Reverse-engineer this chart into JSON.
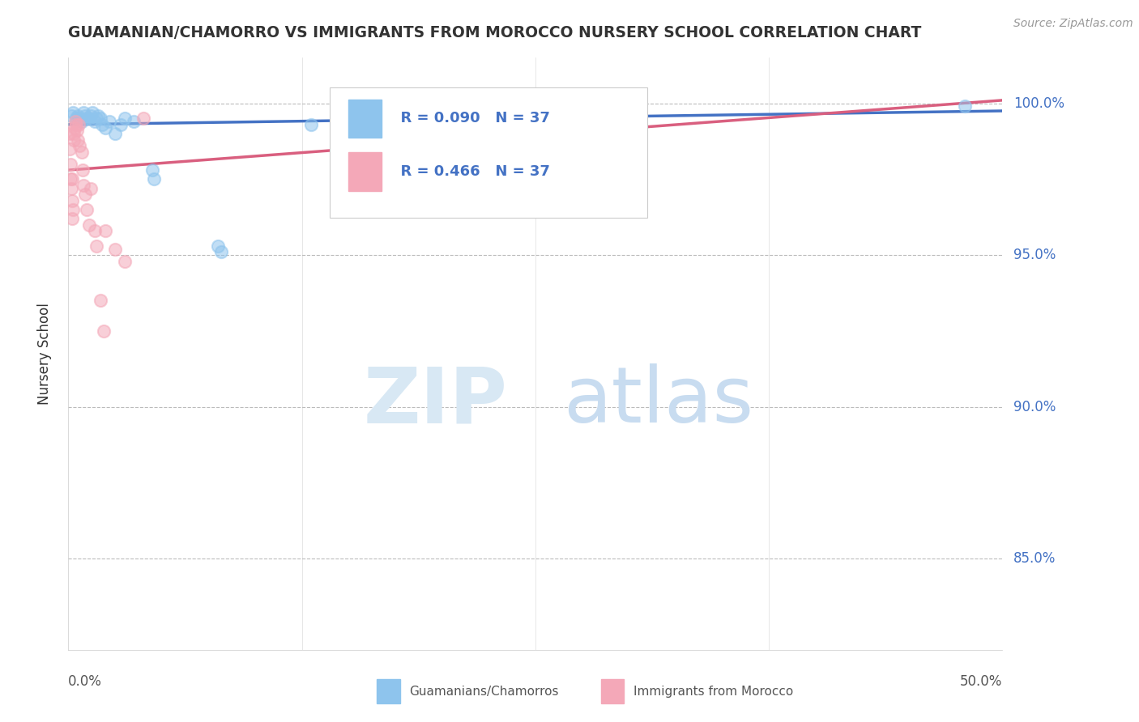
{
  "title": "GUAMANIAN/CHAMORRO VS IMMIGRANTS FROM MOROCCO NURSERY SCHOOL CORRELATION CHART",
  "source": "Source: ZipAtlas.com",
  "ylabel": "Nursery School",
  "ytick_labels": [
    "100.0%",
    "95.0%",
    "90.0%",
    "85.0%"
  ],
  "ytick_values": [
    100.0,
    95.0,
    90.0,
    85.0
  ],
  "xlim": [
    0.0,
    50.0
  ],
  "ylim": [
    82.0,
    101.5
  ],
  "legend_label1": "Guamanians/Chamorros",
  "legend_label2": "Immigrants from Morocco",
  "R1": 0.09,
  "N1": 37,
  "R2": 0.466,
  "N2": 37,
  "color_blue": "#8EC4ED",
  "color_pink": "#F4A8B8",
  "trendline_blue": "#4472C4",
  "trendline_pink": "#D95F7F",
  "blue_points": [
    [
      0.15,
      99.6
    ],
    [
      0.25,
      99.7
    ],
    [
      0.4,
      99.5
    ],
    [
      0.5,
      99.6
    ],
    [
      0.6,
      99.5
    ],
    [
      0.7,
      99.4
    ],
    [
      0.8,
      99.7
    ],
    [
      0.9,
      99.6
    ],
    [
      1.0,
      99.5
    ],
    [
      1.1,
      99.5
    ],
    [
      1.2,
      99.6
    ],
    [
      1.3,
      99.7
    ],
    [
      1.4,
      99.4
    ],
    [
      1.5,
      99.5
    ],
    [
      1.6,
      99.6
    ],
    [
      1.7,
      99.5
    ],
    [
      1.8,
      99.3
    ],
    [
      2.0,
      99.2
    ],
    [
      2.2,
      99.4
    ],
    [
      2.5,
      99.0
    ],
    [
      2.8,
      99.3
    ],
    [
      3.0,
      99.5
    ],
    [
      3.5,
      99.4
    ],
    [
      4.5,
      97.8
    ],
    [
      4.6,
      97.5
    ],
    [
      8.0,
      95.3
    ],
    [
      8.2,
      95.1
    ],
    [
      13.0,
      99.3
    ],
    [
      48.0,
      99.9
    ]
  ],
  "pink_points": [
    [
      0.05,
      99.0
    ],
    [
      0.08,
      98.5
    ],
    [
      0.1,
      98.0
    ],
    [
      0.12,
      97.5
    ],
    [
      0.15,
      97.2
    ],
    [
      0.18,
      96.8
    ],
    [
      0.2,
      96.2
    ],
    [
      0.22,
      97.5
    ],
    [
      0.25,
      96.5
    ],
    [
      0.28,
      98.8
    ],
    [
      0.3,
      99.0
    ],
    [
      0.35,
      99.2
    ],
    [
      0.38,
      99.4
    ],
    [
      0.4,
      99.3
    ],
    [
      0.45,
      99.1
    ],
    [
      0.5,
      98.8
    ],
    [
      0.55,
      99.3
    ],
    [
      0.6,
      98.6
    ],
    [
      0.7,
      98.4
    ],
    [
      0.75,
      97.8
    ],
    [
      0.8,
      97.3
    ],
    [
      0.9,
      97.0
    ],
    [
      1.0,
      96.5
    ],
    [
      1.1,
      96.0
    ],
    [
      1.2,
      97.2
    ],
    [
      1.4,
      95.8
    ],
    [
      1.5,
      95.3
    ],
    [
      2.0,
      95.8
    ],
    [
      3.0,
      94.8
    ],
    [
      4.0,
      99.5
    ]
  ],
  "pink_points_low": [
    [
      1.7,
      93.5
    ],
    [
      1.9,
      92.5
    ],
    [
      2.5,
      95.2
    ]
  ]
}
